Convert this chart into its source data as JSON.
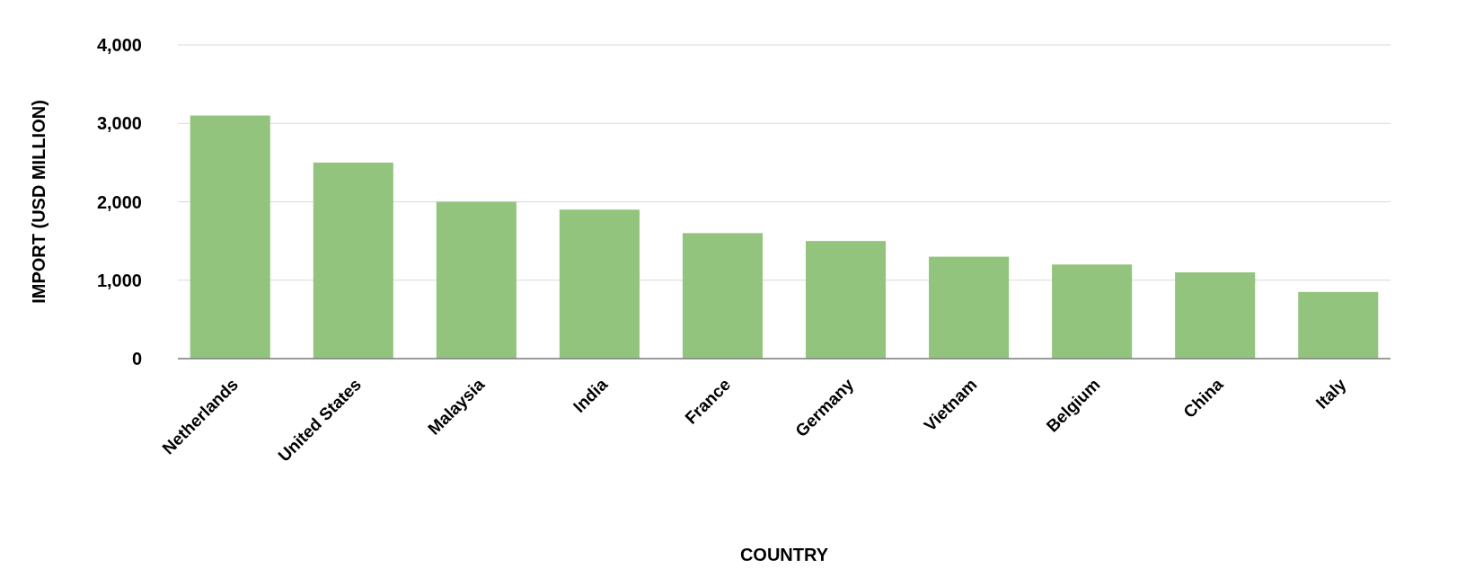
{
  "chart_data": {
    "type": "bar",
    "xlabel": "COUNTRY",
    "ylabel": "IMPORT (USD MILLION)",
    "categories": [
      "Netherlands",
      "United States",
      "Malaysia",
      "India",
      "France",
      "Germany",
      "Vietnam",
      "Belgium",
      "China",
      "Italy"
    ],
    "values": [
      3100,
      2500,
      2000,
      1900,
      1600,
      1500,
      1300,
      1200,
      1100,
      850
    ],
    "color": "#93c47d",
    "ylim": [
      0,
      4000
    ],
    "yticks": [
      0,
      {
        "value": 1000,
        "label": "1,000"
      },
      {
        "value": 2000,
        "label": "2,000"
      },
      {
        "value": 3000,
        "label": "3,000"
      },
      {
        "value": 4000,
        "label": "4,000"
      }
    ],
    "grid": "y"
  }
}
